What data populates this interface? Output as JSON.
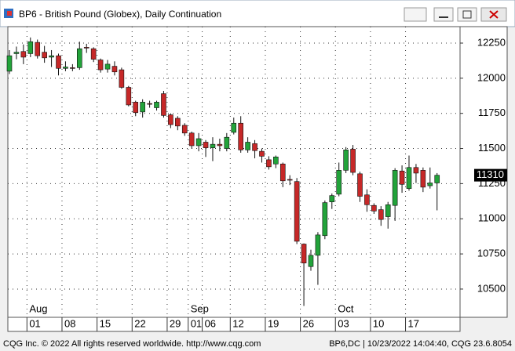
{
  "window_title": "BP6 - British Pound (Globex), Daily Continuation",
  "chart_data": {
    "type": "candlestick",
    "categories": [
      null,
      null,
      null,
      "01",
      null,
      null,
      null,
      null,
      "08",
      null,
      null,
      null,
      null,
      "15",
      null,
      null,
      null,
      null,
      "22",
      null,
      null,
      null,
      null,
      "29",
      null,
      null,
      "01",
      null,
      "06",
      null,
      null,
      null,
      "12",
      null,
      null,
      null,
      null,
      "19",
      null,
      null,
      null,
      null,
      "26",
      null,
      null,
      null,
      null,
      "03",
      null,
      null,
      null,
      null,
      "10",
      null,
      null,
      null,
      null,
      "17",
      null,
      null,
      null,
      null
    ],
    "months": [
      "Aug",
      "Sep",
      "Oct"
    ],
    "open": [
      12050,
      12175,
      12190,
      12175,
      12255,
      12185,
      12150,
      12160,
      12070,
      12075,
      12075,
      12220,
      12210,
      12130,
      12065,
      12085,
      12060,
      11935,
      11830,
      11760,
      11820,
      11790,
      11890,
      11740,
      11715,
      11665,
      11610,
      11520,
      11545,
      11505,
      11530,
      11500,
      11615,
      11680,
      11490,
      11535,
      11480,
      11420,
      11390,
      11390,
      11280,
      11265,
      10820,
      10660,
      10740,
      10880,
      11120,
      11175,
      11345,
      11495,
      11320,
      11170,
      11095,
      11065,
      11015,
      11095,
      11340,
      11215,
      11365,
      11345,
      11235,
      11255
    ],
    "high": [
      12200,
      12225,
      12240,
      12290,
      12275,
      12230,
      12200,
      12175,
      12120,
      12100,
      12260,
      12245,
      12220,
      12140,
      12130,
      12120,
      12075,
      11945,
      11840,
      11850,
      11840,
      11840,
      11910,
      11750,
      11730,
      11680,
      11620,
      11610,
      11560,
      11580,
      11570,
      11610,
      11720,
      11730,
      11580,
      11560,
      11500,
      11445,
      11450,
      11400,
      11310,
      11290,
      10825,
      10780,
      10905,
      11130,
      11180,
      11400,
      11510,
      11525,
      11335,
      11210,
      11110,
      11090,
      11120,
      11360,
      11380,
      11450,
      11390,
      11365,
      11365,
      11325
    ],
    "low": [
      12030,
      12135,
      12100,
      12150,
      12140,
      12110,
      12080,
      12020,
      12050,
      12050,
      12060,
      12180,
      12115,
      12040,
      12040,
      12020,
      11925,
      11800,
      11730,
      11720,
      11790,
      11770,
      11720,
      11645,
      11630,
      11590,
      11500,
      11480,
      11440,
      11410,
      11480,
      11480,
      11600,
      11470,
      11470,
      11430,
      11400,
      11350,
      11360,
      11225,
      11240,
      10820,
      10380,
      10630,
      10530,
      10855,
      11070,
      11160,
      11325,
      11310,
      11120,
      11050,
      11035,
      10950,
      10930,
      10985,
      11185,
      11200,
      11255,
      11190,
      11215,
      11060
    ],
    "close": [
      12160,
      12185,
      12150,
      12260,
      12160,
      12145,
      12160,
      12070,
      12080,
      12070,
      12210,
      12215,
      12135,
      12060,
      12100,
      12045,
      11935,
      11810,
      11755,
      11830,
      11815,
      11830,
      11735,
      11670,
      11660,
      11610,
      11520,
      11570,
      11505,
      11530,
      11520,
      11580,
      11680,
      11490,
      11545,
      11485,
      11445,
      11370,
      11440,
      11270,
      11275,
      10840,
      10685,
      10740,
      10885,
      11115,
      11165,
      11345,
      11490,
      11330,
      11160,
      11100,
      11055,
      10995,
      11100,
      11345,
      11245,
      11365,
      11325,
      11225,
      11255,
      11310
    ],
    "up_color": "#22a33a",
    "down_color": "#c62828",
    "ylim": [
      10299,
      12367
    ],
    "yticks": [
      10500,
      10750,
      11000,
      11250,
      11500,
      11750,
      12000,
      12250
    ],
    "grid": true
  },
  "footer": {
    "left": "CQG Inc. © 2022 All rights reserved worldwide. http://www.cqg.com",
    "right": "BP6,DC | 10/23/2022 14:04:40, CQG 23.6.8054"
  }
}
